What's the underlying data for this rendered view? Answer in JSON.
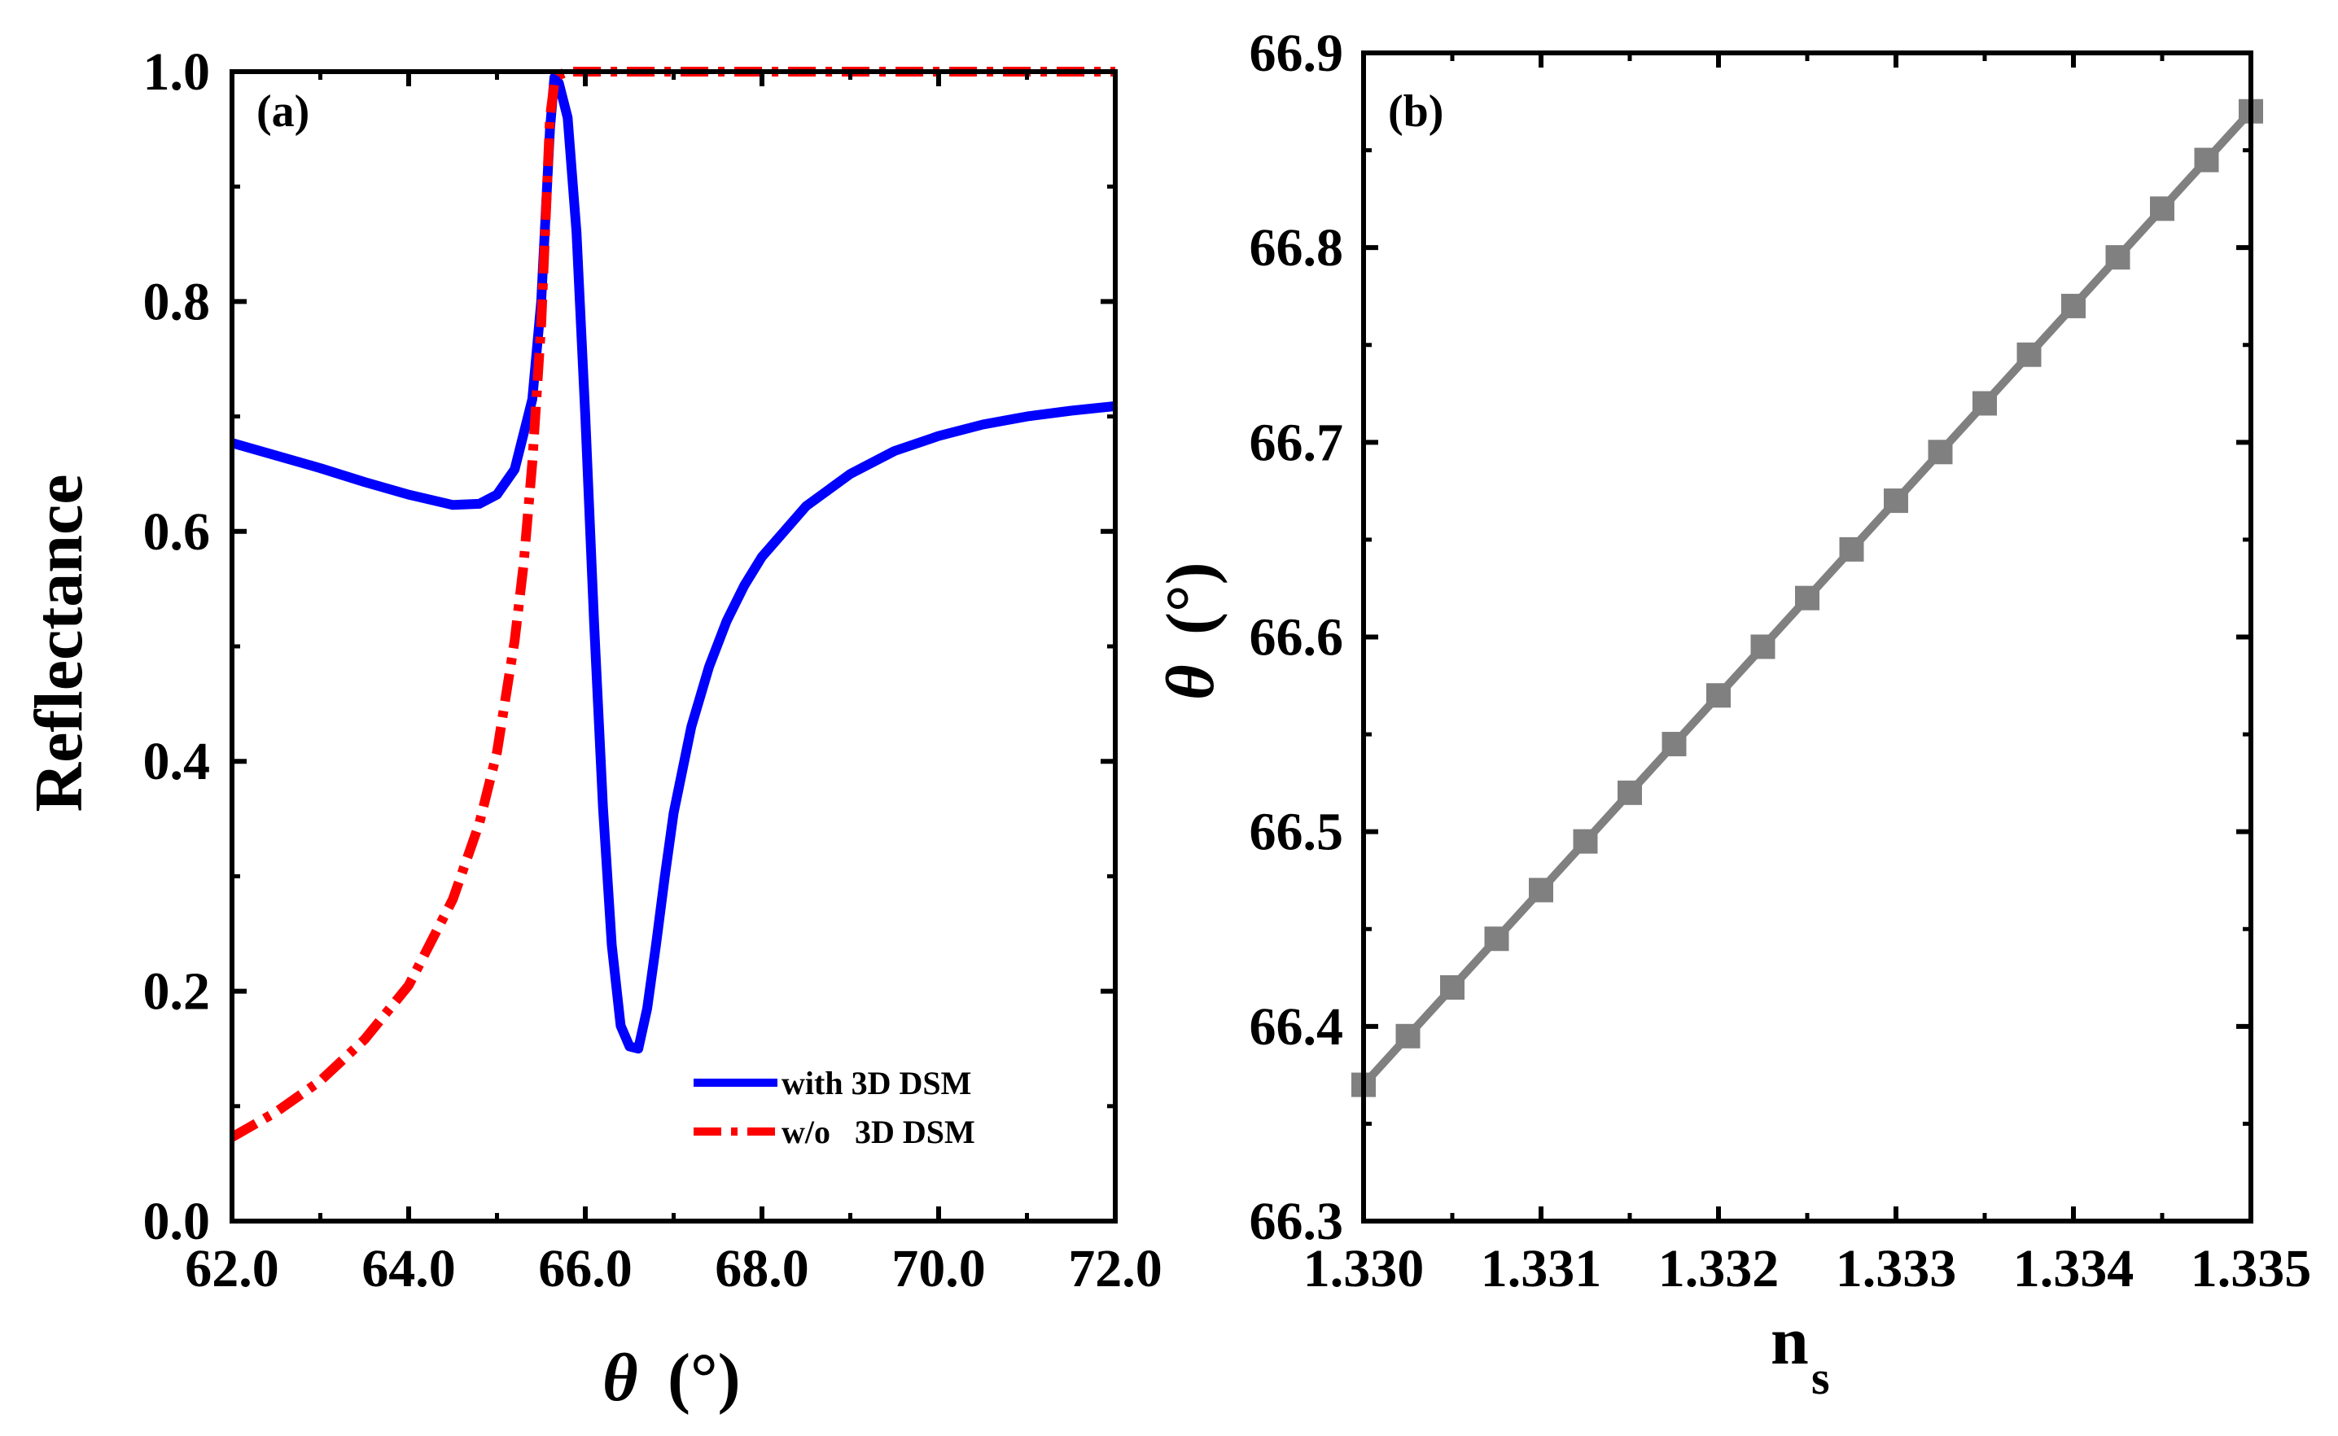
{
  "figure": {
    "colors": {
      "with_dsm": "#0000ff",
      "without_dsm": "#ff0000",
      "panel_b": "#808080",
      "axis": "#000000"
    }
  },
  "chart_data": [
    {
      "type": "line",
      "panel_label": "(a)",
      "xlabel_symbol": "θ",
      "xlabel_unit": "(°)",
      "ylabel": "Reflectance",
      "xlim": [
        62.0,
        72.0
      ],
      "ylim": [
        0.0,
        1.0
      ],
      "xticks": [
        "62.0",
        "64.0",
        "66.0",
        "68.0",
        "70.0",
        "72.0"
      ],
      "yticks": [
        "0.0",
        "0.2",
        "0.4",
        "0.6",
        "0.8",
        "1.0"
      ],
      "legend_position": "bottom-right",
      "series": [
        {
          "name": "with 3D DSM",
          "style": "solid",
          "color": "#0000ff",
          "x": [
            62.0,
            62.5,
            63.0,
            63.5,
            64.0,
            64.5,
            64.8,
            65.0,
            65.2,
            65.4,
            65.5,
            65.6,
            65.65,
            65.7,
            65.8,
            65.9,
            66.0,
            66.1,
            66.2,
            66.3,
            66.4,
            66.5,
            66.6,
            66.7,
            66.8,
            66.9,
            67.0,
            67.2,
            67.4,
            67.6,
            67.8,
            68.0,
            68.5,
            69.0,
            69.5,
            70.0,
            70.5,
            71.0,
            71.5,
            72.0
          ],
          "y": [
            0.677,
            0.666,
            0.655,
            0.643,
            0.632,
            0.623,
            0.624,
            0.632,
            0.654,
            0.715,
            0.8,
            0.95,
            0.995,
            0.99,
            0.96,
            0.86,
            0.7,
            0.52,
            0.36,
            0.24,
            0.17,
            0.152,
            0.15,
            0.185,
            0.24,
            0.3,
            0.355,
            0.43,
            0.482,
            0.522,
            0.553,
            0.578,
            0.622,
            0.65,
            0.67,
            0.683,
            0.693,
            0.7,
            0.705,
            0.709
          ]
        },
        {
          "name": "w/o   3D DSM",
          "style": "dashdot",
          "color": "#ff0000",
          "x": [
            62.0,
            62.5,
            63.0,
            63.5,
            64.0,
            64.5,
            64.8,
            65.0,
            65.2,
            65.3,
            65.4,
            65.5,
            65.55,
            65.6,
            65.65,
            65.7,
            65.8,
            66.0,
            67.0,
            68.0,
            70.0,
            72.0
          ],
          "y": [
            0.073,
            0.095,
            0.122,
            0.158,
            0.205,
            0.28,
            0.346,
            0.408,
            0.505,
            0.57,
            0.66,
            0.78,
            0.87,
            0.96,
            0.99,
            0.997,
            1.0,
            1.0,
            1.0,
            1.0,
            1.0,
            1.0
          ]
        }
      ]
    },
    {
      "type": "line",
      "panel_label": "(b)",
      "xlabel_main": "n",
      "xlabel_sub": "s",
      "ylabel_symbol": "θ",
      "ylabel_unit": "(°)",
      "xlim": [
        1.33,
        1.335
      ],
      "ylim": [
        66.3,
        66.9
      ],
      "xticks": [
        "1.330",
        "1.331",
        "1.332",
        "1.333",
        "1.334",
        "1.335"
      ],
      "yticks": [
        "66.3",
        "66.4",
        "66.5",
        "66.6",
        "66.7",
        "66.8",
        "66.9"
      ],
      "series": [
        {
          "name": "theta_vs_ns",
          "style": "solid-square-markers",
          "color": "#808080",
          "x": [
            1.33,
            1.33025,
            1.3305,
            1.33075,
            1.331,
            1.33125,
            1.3315,
            1.33175,
            1.332,
            1.33225,
            1.3325,
            1.33275,
            1.333,
            1.33325,
            1.3335,
            1.33375,
            1.334,
            1.33425,
            1.3345,
            1.33475,
            1.335
          ],
          "y": [
            66.37,
            66.395,
            66.42,
            66.445,
            66.47,
            66.495,
            66.52,
            66.545,
            66.57,
            66.595,
            66.62,
            66.645,
            66.67,
            66.695,
            66.72,
            66.745,
            66.77,
            66.795,
            66.82,
            66.845,
            66.87
          ]
        }
      ]
    }
  ]
}
